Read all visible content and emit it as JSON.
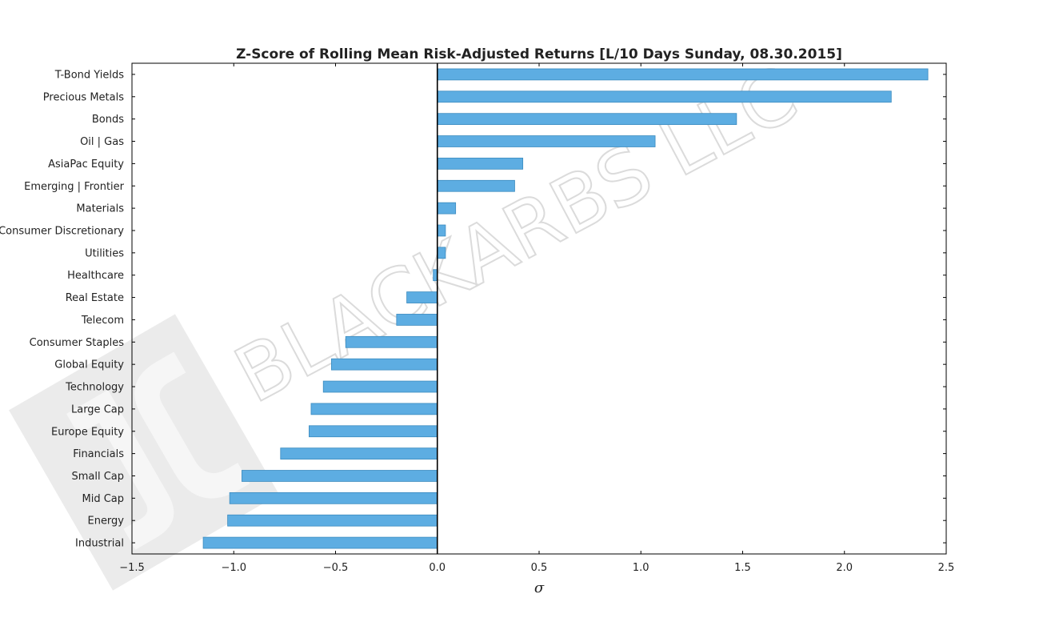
{
  "watermark": {
    "text": "BLACKARBS LLC",
    "logo_icon": "blackarbs-logo-icon"
  },
  "chart_data": {
    "type": "bar",
    "orientation": "horizontal",
    "title": "Z-Score of Rolling Mean Risk-Adjusted Returns [L/10 Days Sunday, 08.30.2015]",
    "xlabel": "σ",
    "ylabel": "",
    "xlim": [
      -1.5,
      2.5
    ],
    "xticks": [
      -1.5,
      -1.0,
      -0.5,
      0.0,
      0.5,
      1.0,
      1.5,
      2.0,
      2.5
    ],
    "xtick_labels": [
      "−1.5",
      "−1.0",
      "−0.5",
      "0.0",
      "0.5",
      "1.0",
      "1.5",
      "2.0",
      "2.5"
    ],
    "grid": false,
    "bar_color": "#5dade2",
    "bar_edge_color": "#3b8bbf",
    "zero_line_color": "#000000",
    "categories": [
      "T-Bond Yields",
      "Precious Metals",
      "Bonds",
      "Oil | Gas",
      "AsiaPac Equity",
      "Emerging | Frontier",
      "Materials",
      "Consumer Discretionary",
      "Utilities",
      "Healthcare",
      "Real Estate",
      "Telecom",
      "Consumer Staples",
      "Global Equity",
      "Technology",
      "Large Cap",
      "Europe Equity",
      "Financials",
      "Small Cap",
      "Mid Cap",
      "Energy",
      "Industrial"
    ],
    "values": [
      2.41,
      2.23,
      1.47,
      1.07,
      0.42,
      0.38,
      0.09,
      0.04,
      0.04,
      -0.02,
      -0.15,
      -0.2,
      -0.45,
      -0.52,
      -0.56,
      -0.62,
      -0.63,
      -0.77,
      -0.96,
      -1.02,
      -1.03,
      -1.15
    ]
  }
}
